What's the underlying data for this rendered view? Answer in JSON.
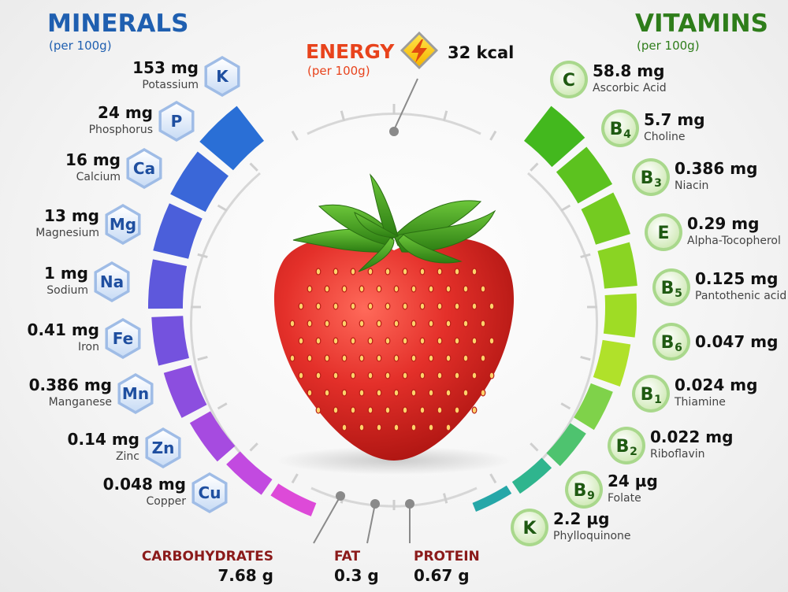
{
  "minerals": {
    "title": "MINERALS",
    "subtitle": "(per 100g)",
    "items": [
      {
        "amount": "153 mg",
        "name": "Potassium",
        "symbol": "K"
      },
      {
        "amount": "24 mg",
        "name": "Phosphorus",
        "symbol": "P"
      },
      {
        "amount": "16 mg",
        "name": "Calcium",
        "symbol": "Ca"
      },
      {
        "amount": "13 mg",
        "name": "Magnesium",
        "symbol": "Mg"
      },
      {
        "amount": "1 mg",
        "name": "Sodium",
        "symbol": "Na"
      },
      {
        "amount": "0.41 mg",
        "name": "Iron",
        "symbol": "Fe"
      },
      {
        "amount": "0.386 mg",
        "name": "Manganese",
        "symbol": "Mn"
      },
      {
        "amount": "0.14 mg",
        "name": "Zinc",
        "symbol": "Zn"
      },
      {
        "amount": "0.048 mg",
        "name": "Copper",
        "symbol": "Cu"
      }
    ]
  },
  "vitamins": {
    "title": "VITAMINS",
    "subtitle": "(per 100g)",
    "items": [
      {
        "amount": "58.8 mg",
        "name": "Ascorbic Acid",
        "letter": "C",
        "sub": ""
      },
      {
        "amount": "5.7 mg",
        "name": "Choline",
        "letter": "B",
        "sub": "4"
      },
      {
        "amount": "0.386 mg",
        "name": "Niacin",
        "letter": "B",
        "sub": "3"
      },
      {
        "amount": "0.29 mg",
        "name": "Alpha-Tocopherol",
        "letter": "E",
        "sub": ""
      },
      {
        "amount": "0.125 mg",
        "name": "Pantothenic acid",
        "letter": "B",
        "sub": "5"
      },
      {
        "amount": "0.047 mg",
        "name": "",
        "letter": "B",
        "sub": "6"
      },
      {
        "amount": "0.024 mg",
        "name": "Thiamine",
        "letter": "B",
        "sub": "1"
      },
      {
        "amount": "0.022 mg",
        "name": "Riboflavin",
        "letter": "B",
        "sub": "2"
      },
      {
        "amount": "24 µg",
        "name": "Folate",
        "letter": "B",
        "sub": "9"
      },
      {
        "amount": "2.2 µg",
        "name": "Phylloquinone",
        "letter": "K",
        "sub": ""
      }
    ]
  },
  "energy": {
    "title": "ENERGY",
    "subtitle": "(per 100g)",
    "value": "32 kcal"
  },
  "macros": [
    {
      "name": "CARBOHYDRATES",
      "value": "7.68 g"
    },
    {
      "name": "FAT",
      "value": "0.3 g"
    },
    {
      "name": "PROTEIN",
      "value": "0.67 g"
    }
  ],
  "colors": {
    "minerals_title": "#1f5fb0",
    "vitamins_title": "#2e7d1a",
    "energy_title": "#e8431c",
    "macro_title": "#8b1a1a",
    "mineral_bars": [
      "#2a6fd6",
      "#3a67d8",
      "#4b5fda",
      "#5e58dc",
      "#7452de",
      "#8c4edf",
      "#a64be0",
      "#c24ae0",
      "#dd4ad8"
    ],
    "vitamin_bars": [
      "#43b81e",
      "#5cc21f",
      "#74cb21",
      "#8ad423",
      "#9fdc25",
      "#b0e12a",
      "#7fd24a",
      "#4ec36f",
      "#2fb58e",
      "#26a7a8"
    ],
    "strawberry": "#e22b2b",
    "leaf": "#3f9e1e"
  }
}
